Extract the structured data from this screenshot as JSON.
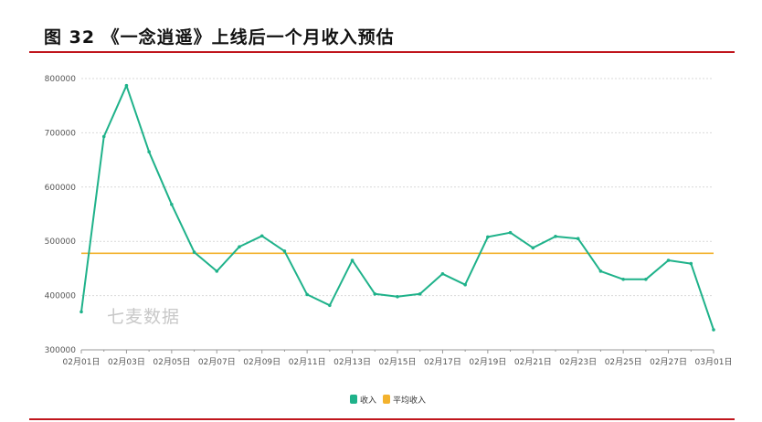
{
  "figure": {
    "title": "图 32 《一念逍遥》上线后一个月收入预估",
    "watermark": "七麦数据"
  },
  "colors": {
    "series_line": "#1fb28a",
    "average_line": "#f3b22e",
    "rule": "#c0151c",
    "grid": "#d9d9d9",
    "axis_text": "#555555"
  },
  "chart_data": {
    "type": "line",
    "title": "",
    "xlabel": "",
    "ylabel": "",
    "ylim": [
      300000,
      800000
    ],
    "yticks": [
      300000,
      400000,
      500000,
      600000,
      700000,
      800000
    ],
    "x_labels": [
      "02月01日",
      "02月03日",
      "02月05日",
      "02月07日",
      "02月09日",
      "02月11日",
      "02月13日",
      "02月15日",
      "02月17日",
      "02月19日",
      "02月21日",
      "02月23日",
      "02月25日",
      "02月27日",
      "03月01日"
    ],
    "x": [
      "02-01",
      "02-02",
      "02-03",
      "02-04",
      "02-05",
      "02-06",
      "02-07",
      "02-08",
      "02-09",
      "02-10",
      "02-11",
      "02-12",
      "02-13",
      "02-14",
      "02-15",
      "02-16",
      "02-17",
      "02-18",
      "02-19",
      "02-20",
      "02-21",
      "02-22",
      "02-23",
      "02-24",
      "02-25",
      "02-26",
      "02-27",
      "02-28",
      "03-01"
    ],
    "series": [
      {
        "name": "收入",
        "values": [
          370000,
          693000,
          787000,
          665000,
          568000,
          480000,
          445000,
          490000,
          510000,
          482000,
          402000,
          382000,
          465000,
          403000,
          398000,
          403000,
          440000,
          420000,
          508000,
          516000,
          488000,
          509000,
          505000,
          445000,
          430000,
          430000,
          465000,
          459000,
          337000
        ]
      },
      {
        "name": "平均收入",
        "value": 478000
      }
    ],
    "legend_position": "bottom-center",
    "grid": true
  }
}
